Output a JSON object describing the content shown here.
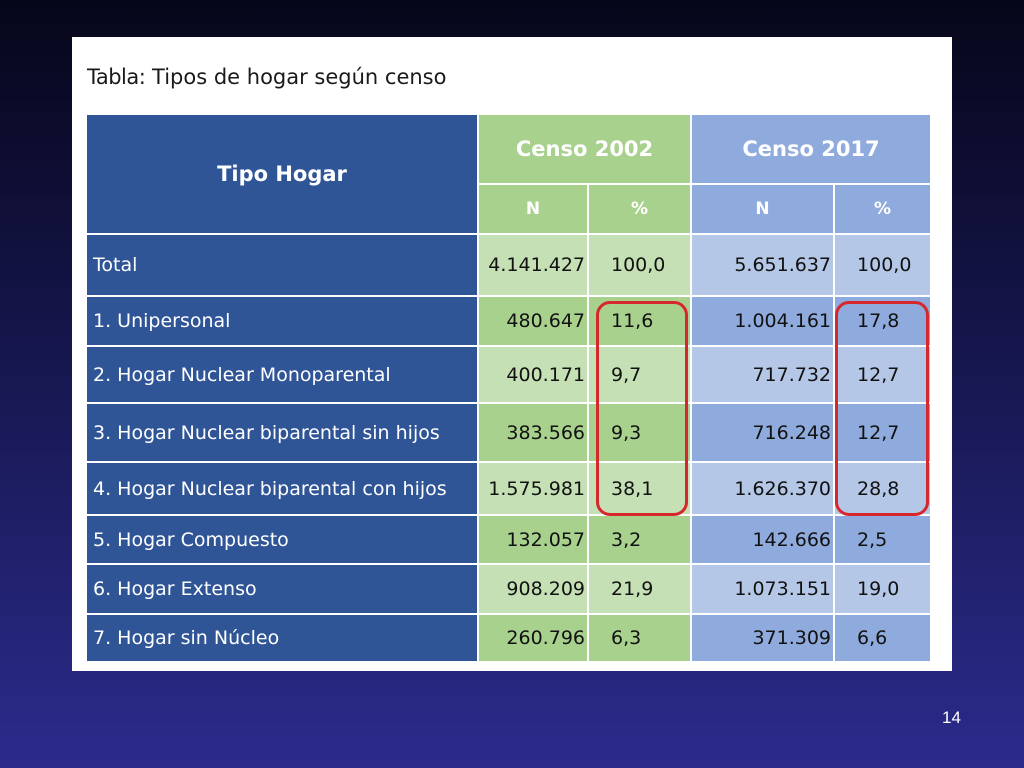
{
  "caption": {
    "bold": "Tabla:",
    "text": " Tipos de hogar según censo"
  },
  "table": {
    "header": {
      "tipo": "Tipo Hogar",
      "censo2002": "Censo 2002",
      "censo2017": "Censo 2017",
      "sub": [
        "N",
        "%",
        "N",
        "%"
      ]
    },
    "rows": [
      {
        "label": "Total",
        "n2002": "4.141.427",
        "p2002": "100,0",
        "n2017": "5.651.637",
        "p2017": "100,0"
      },
      {
        "label": "1. Unipersonal",
        "n2002": "480.647",
        "p2002": "11,6",
        "n2017": "1.004.161",
        "p2017": "17,8"
      },
      {
        "label": "2. Hogar Nuclear Monoparental",
        "n2002": "400.171",
        "p2002": "9,7",
        "n2017": "717.732",
        "p2017": "12,7"
      },
      {
        "label": "3. Hogar Nuclear biparental sin hijos",
        "n2002": "383.566",
        "p2002": "9,3",
        "n2017": "716.248",
        "p2017": "12,7"
      },
      {
        "label": "4. Hogar Nuclear biparental con hijos",
        "n2002": "1.575.981",
        "p2002": "38,1",
        "n2017": "1.626.370",
        "p2017": "28,8"
      },
      {
        "label": "5. Hogar Compuesto",
        "n2002": "132.057",
        "p2002": "3,2",
        "n2017": "142.666",
        "p2017": "2,5"
      },
      {
        "label": "6. Hogar Extenso",
        "n2002": "908.209",
        "p2002": "21,9",
        "n2017": "1.073.151",
        "p2017": "19,0"
      },
      {
        "label": "7. Hogar sin Núcleo",
        "n2002": "260.796",
        "p2002": "6,3",
        "n2017": "371.309",
        "p2017": "6,6"
      }
    ]
  },
  "page_number": "14",
  "colors": {
    "header_dark_blue": "#2f5597",
    "green": "#a9d18e",
    "green_light": "#c5e0b4",
    "blue": "#8faadc",
    "blue_light": "#b4c7e7",
    "highlight_ring": "#d6282c"
  }
}
